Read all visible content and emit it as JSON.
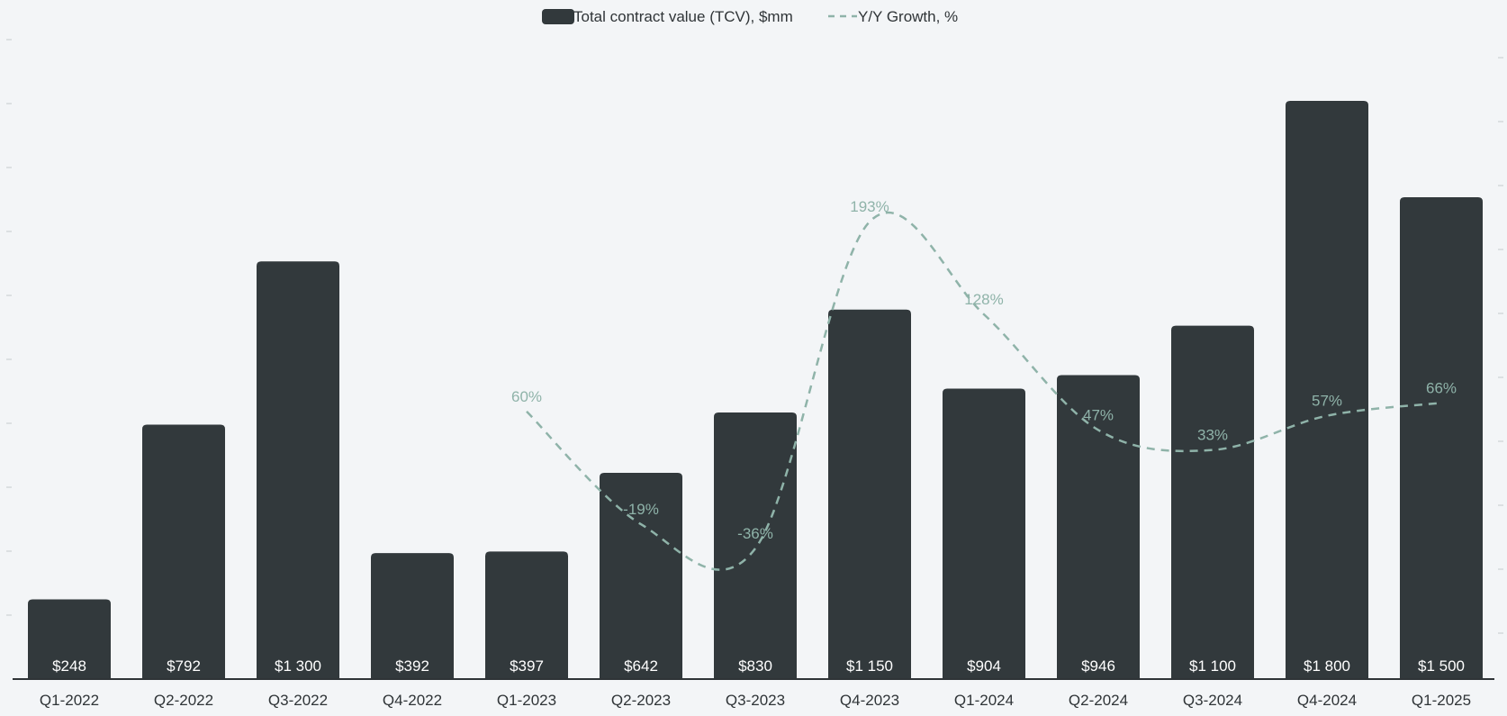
{
  "chart_data": {
    "type": "bar",
    "categories": [
      "Q1-2022",
      "Q2-2022",
      "Q3-2022",
      "Q4-2022",
      "Q1-2023",
      "Q2-2023",
      "Q3-2023",
      "Q4-2023",
      "Q1-2024",
      "Q2-2024",
      "Q3-2024",
      "Q4-2024",
      "Q1-2025"
    ],
    "series": [
      {
        "name": "Total contract value (TCV), $mm",
        "kind": "bar",
        "values": [
          248,
          792,
          1300,
          392,
          397,
          642,
          830,
          1150,
          904,
          946,
          1100,
          1800,
          1500
        ],
        "labels": [
          "$248",
          "$792",
          "$1 300",
          "$392",
          "$397",
          "$642",
          "$830",
          "$1 150",
          "$904",
          "$946",
          "$1 100",
          "$1 800",
          "$1 500"
        ]
      },
      {
        "name": "Y/Y Growth, %",
        "kind": "line",
        "style": "dashed-smooth",
        "values": [
          null,
          null,
          null,
          null,
          60,
          -19,
          -36,
          193,
          128,
          47,
          33,
          57,
          66
        ],
        "labels": [
          "",
          "",
          "",
          "",
          "60%",
          "-19%",
          "-36%",
          "193%",
          "128%",
          "47%",
          "33%",
          "57%",
          "66%"
        ]
      }
    ],
    "ylim_bars": [
      0,
      2000
    ],
    "ylim_growth": [
      -60,
      260
    ],
    "grid": false,
    "legend_position": "top-center",
    "colors": {
      "bar": "#32393c",
      "line": "#8fb3a9",
      "background": "#f3f5f7",
      "axis": "#2f3437"
    }
  }
}
